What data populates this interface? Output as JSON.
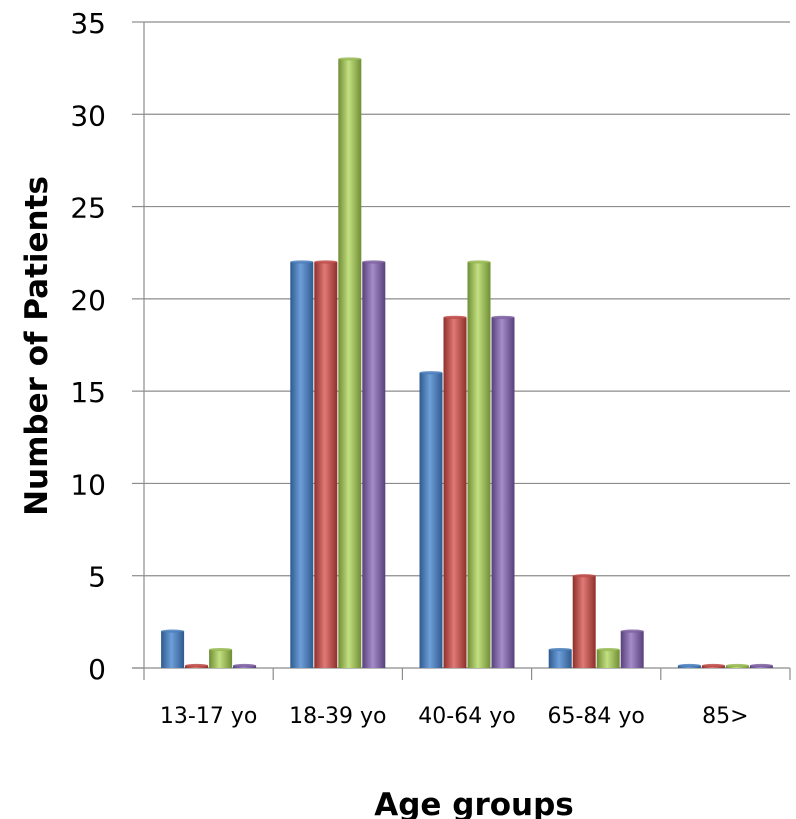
{
  "chart_data": {
    "type": "bar",
    "title": "",
    "xlabel": "Age groups",
    "ylabel": "Number of Patients",
    "categories": [
      "13-17 yo",
      "18-39 yo",
      "40-64 yo",
      "65-84 yo",
      "85>"
    ],
    "series": [
      {
        "color": "#4a7ebb",
        "values": [
          2,
          22,
          16,
          1,
          0
        ]
      },
      {
        "color": "#be4b48",
        "values": [
          0,
          22,
          19,
          5,
          0
        ]
      },
      {
        "color": "#98b954",
        "values": [
          1,
          33,
          22,
          1,
          0
        ]
      },
      {
        "color": "#7d60a0",
        "values": [
          0,
          22,
          19,
          2,
          0
        ]
      }
    ],
    "ylim": [
      0,
      35
    ],
    "yticks": [
      0,
      5,
      10,
      15,
      20,
      25,
      30,
      35
    ],
    "grid": true,
    "legend": "none"
  }
}
